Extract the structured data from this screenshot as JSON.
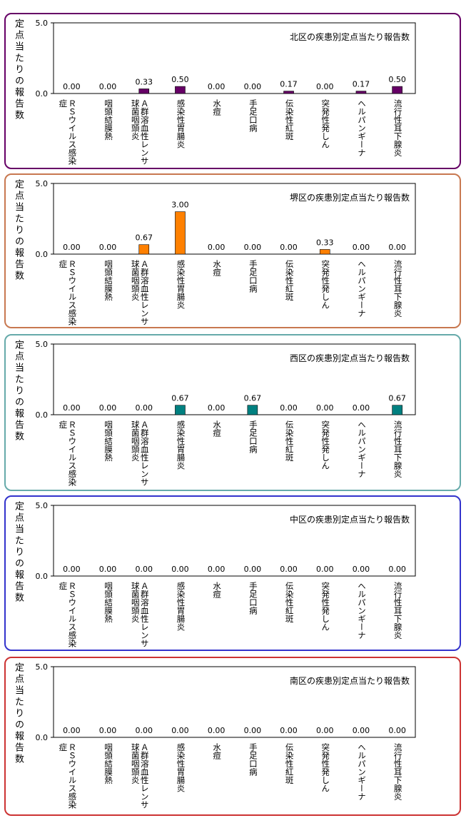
{
  "chart_data": [
    {
      "type": "bar",
      "title": "北区の疾患別定点当たり報告数",
      "ylabel": "定点当たりの報告数",
      "categories": [
        "ＲＳウイルス感染症",
        "咽頭結膜熱",
        "Ａ群溶血性レンサ球菌咽頭炎",
        "感染性胃腸炎",
        "水痘",
        "手足口病",
        "伝染性紅斑",
        "突発性発しん",
        "ヘルパンギーナ",
        "流行性耳下腺炎"
      ],
      "values": [
        0,
        0,
        0.33,
        0.5,
        0,
        0,
        0.17,
        0,
        0.17,
        0.5
      ],
      "value_labels": [
        "0.00",
        "0.00",
        "0.33",
        "0.50",
        "0.00",
        "0.00",
        "0.17",
        "0.00",
        "0.17",
        "0.50"
      ],
      "color": "#660066",
      "ylim": [
        0,
        5
      ],
      "yticks": [
        {
          "value": 0,
          "label": "0.0"
        },
        {
          "value": 5,
          "label": "5.0"
        }
      ]
    },
    {
      "type": "bar",
      "title": "堺区の疾患別定点当たり報告数",
      "ylabel": "定点当たりの報告数",
      "categories": [
        "ＲＳウイルス感染症",
        "咽頭結膜熱",
        "Ａ群溶血性レンサ球菌咽頭炎",
        "感染性胃腸炎",
        "水痘",
        "手足口病",
        "伝染性紅斑",
        "突発性発しん",
        "ヘルパンギーナ",
        "流行性耳下腺炎"
      ],
      "values": [
        0,
        0,
        0.67,
        3,
        0,
        0,
        0,
        0.33,
        0,
        0
      ],
      "value_labels": [
        "0.00",
        "0.00",
        "0.67",
        "3.00",
        "0.00",
        "0.00",
        "0.00",
        "0.33",
        "0.00",
        "0.00"
      ],
      "color": "#ff8000",
      "ylim": [
        0,
        5
      ],
      "yticks": [
        {
          "value": 0,
          "label": "0.0"
        },
        {
          "value": 5,
          "label": "5.0"
        }
      ]
    },
    {
      "type": "bar",
      "title": "西区の疾患別定点当たり報告数",
      "ylabel": "定点当たりの報告数",
      "categories": [
        "ＲＳウイルス感染症",
        "咽頭結膜熱",
        "Ａ群溶血性レンサ球菌咽頭炎",
        "感染性胃腸炎",
        "水痘",
        "手足口病",
        "伝染性紅斑",
        "突発性発しん",
        "ヘルパンギーナ",
        "流行性耳下腺炎"
      ],
      "values": [
        0,
        0,
        0,
        0.67,
        0,
        0.67,
        0,
        0,
        0,
        0.67
      ],
      "value_labels": [
        "0.00",
        "0.00",
        "0.00",
        "0.67",
        "0.00",
        "0.67",
        "0.00",
        "0.00",
        "0.00",
        "0.67"
      ],
      "color": "#008080",
      "ylim": [
        0,
        5
      ],
      "yticks": [
        {
          "value": 0,
          "label": "0.0"
        },
        {
          "value": 5,
          "label": "5.0"
        }
      ]
    },
    {
      "type": "bar",
      "title": "中区の疾患別定点当たり報告数",
      "ylabel": "定点当たりの報告数",
      "categories": [
        "ＲＳウイルス感染症",
        "咽頭結膜熱",
        "Ａ群溶血性レンサ球菌咽頭炎",
        "感染性胃腸炎",
        "水痘",
        "手足口病",
        "伝染性紅斑",
        "突発性発しん",
        "ヘルパンギーナ",
        "流行性耳下腺炎"
      ],
      "values": [
        0,
        0,
        0,
        0,
        0,
        0,
        0,
        0,
        0,
        0
      ],
      "value_labels": [
        "0.00",
        "0.00",
        "0.00",
        "0.00",
        "0.00",
        "0.00",
        "0.00",
        "0.00",
        "0.00",
        "0.00"
      ],
      "color": "#3333cc",
      "ylim": [
        0,
        5
      ],
      "yticks": [
        {
          "value": 0,
          "label": "0.0"
        },
        {
          "value": 5,
          "label": "5.0"
        }
      ]
    },
    {
      "type": "bar",
      "title": "南区の疾患別定点当たり報告数",
      "ylabel": "定点当たりの報告数",
      "categories": [
        "ＲＳウイルス感染症",
        "咽頭結膜熱",
        "Ａ群溶血性レンサ球菌咽頭炎",
        "感染性胃腸炎",
        "水痘",
        "手足口病",
        "伝染性紅斑",
        "突発性発しん",
        "ヘルパンギーナ",
        "流行性耳下腺炎"
      ],
      "values": [
        0,
        0,
        0,
        0,
        0,
        0,
        0,
        0,
        0,
        0
      ],
      "value_labels": [
        "0.00",
        "0.00",
        "0.00",
        "0.00",
        "0.00",
        "0.00",
        "0.00",
        "0.00",
        "0.00",
        "0.00"
      ],
      "color": "#cc3333",
      "ylim": [
        0,
        5
      ],
      "yticks": [
        {
          "value": 0,
          "label": "0.0"
        },
        {
          "value": 5,
          "label": "5.0"
        }
      ]
    }
  ]
}
